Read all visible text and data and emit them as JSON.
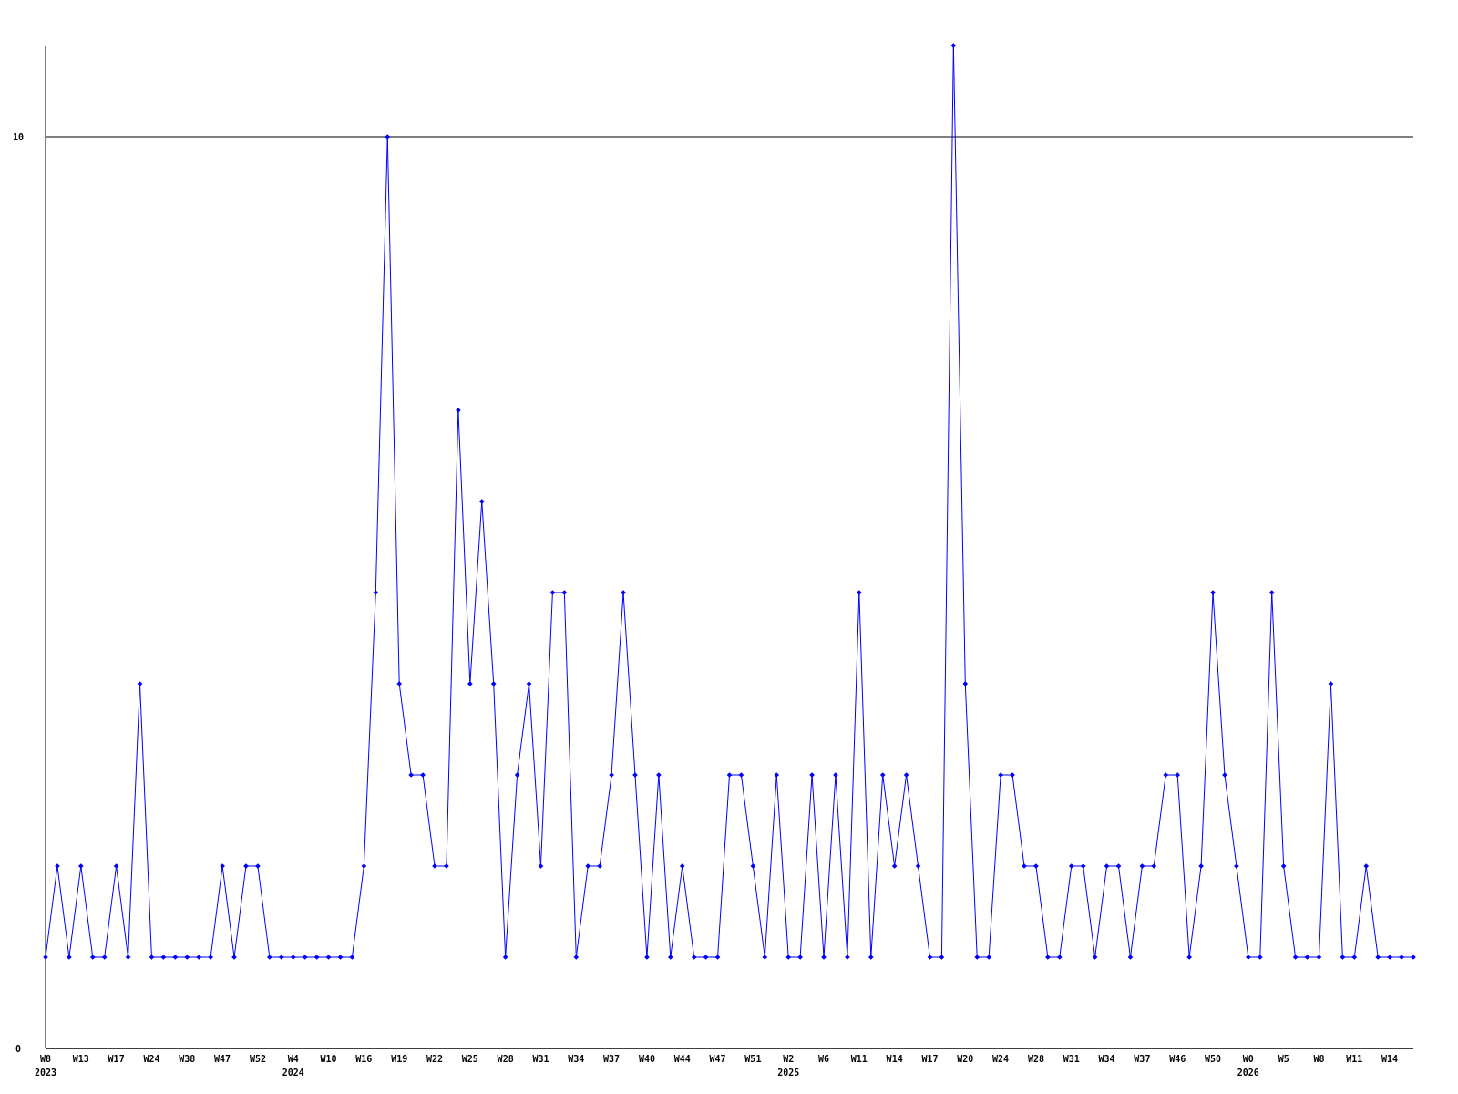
{
  "chart_data": {
    "type": "line",
    "categories": [
      "W8\n2023",
      null,
      null,
      "W13",
      null,
      null,
      "W17",
      null,
      null,
      "W24",
      null,
      null,
      "W38",
      null,
      null,
      "W47",
      null,
      null,
      "W52",
      null,
      null,
      "W4\n2024",
      null,
      null,
      "W10",
      null,
      null,
      "W16",
      null,
      null,
      "W19",
      null,
      null,
      "W22",
      null,
      null,
      "W25",
      null,
      null,
      "W28",
      null,
      null,
      "W31",
      null,
      null,
      "W34",
      null,
      null,
      "W37",
      null,
      null,
      "W40",
      null,
      null,
      "W44",
      null,
      null,
      "W47",
      null,
      null,
      "W51",
      null,
      null,
      "W2\n2025",
      null,
      null,
      "W6",
      null,
      null,
      "W11",
      null,
      null,
      "W14",
      null,
      null,
      "W17",
      null,
      null,
      "W20",
      null,
      null,
      "W24",
      null,
      null,
      "W28",
      null,
      null,
      "W31",
      null,
      null,
      "W34",
      null,
      null,
      "W37",
      null,
      null,
      "W46",
      null,
      null,
      "W50",
      null,
      null,
      "W0\n2026",
      null,
      null,
      "W5",
      null,
      null,
      "W8",
      null,
      null,
      "W11",
      null,
      null,
      "W14",
      null,
      null
    ],
    "series": [
      {
        "color": "#0000ff",
        "values": [
          1,
          2,
          1,
          2,
          1,
          1,
          2,
          1,
          4,
          1,
          1,
          1,
          1,
          1,
          1,
          2,
          1,
          2,
          2,
          1,
          1,
          1,
          1,
          1,
          1,
          1,
          1,
          2,
          5,
          10,
          4,
          3,
          3,
          2,
          2,
          7,
          4,
          6,
          4,
          1,
          3,
          4,
          2,
          5,
          5,
          1,
          2,
          2,
          3,
          5,
          3,
          1,
          3,
          1,
          2,
          1,
          1,
          1,
          3,
          3,
          2,
          1,
          3,
          1,
          1,
          3,
          1,
          3,
          1,
          5,
          1,
          3,
          2,
          3,
          2,
          1,
          1,
          11,
          4,
          1,
          1,
          3,
          3,
          2,
          2,
          1,
          1,
          2,
          2,
          1,
          2,
          2,
          1,
          2,
          2,
          3,
          3,
          1,
          2,
          5,
          3,
          2,
          1,
          1,
          5,
          2,
          1,
          1,
          1,
          4,
          1,
          1,
          2,
          1,
          1,
          1,
          1
        ]
      }
    ],
    "ylim": [
      0,
      11
    ],
    "yticks": [
      0,
      10
    ],
    "grid": "y",
    "marker": "diamond",
    "line_style": "solid"
  }
}
